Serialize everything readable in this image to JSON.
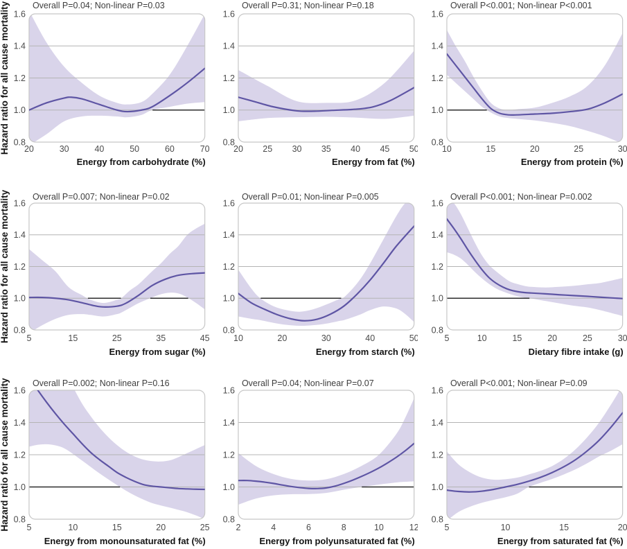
{
  "figure": {
    "ylabel": "Hazard ratio for all cause mortality",
    "style": {
      "line_color": "#5e55a4",
      "band_color": "#d9d4ea",
      "grid_color": "#b4b4b4",
      "ref_line_color": "#2b2b2b",
      "frame_color": "#c6c6c6",
      "title_color": "#3d3d3d",
      "tick_color": "#4b4b4b",
      "label_color": "#141414"
    }
  },
  "chart_data": [
    {
      "type": "line",
      "key": "carbohydrate",
      "title": "Overall P=0.04; Non-linear P=0.03",
      "xlabel": "Energy from carbohydrate (%)",
      "ylabel": "Hazard ratio for all cause mortality",
      "xlim": [
        20,
        70
      ],
      "ylim": [
        0.8,
        1.6
      ],
      "x_ticks": [
        20,
        30,
        40,
        50,
        60,
        70
      ],
      "y_ticks": [
        0.8,
        1.0,
        1.2,
        1.4,
        1.6
      ],
      "gridlines": [
        1.0,
        1.2,
        1.4
      ],
      "reference_y": 1.0,
      "curve": {
        "x": [
          20,
          25,
          30,
          32,
          35,
          40,
          45,
          48,
          52,
          55,
          60,
          65,
          70
        ],
        "hr": [
          1.0,
          1.045,
          1.075,
          1.08,
          1.07,
          1.035,
          1.0,
          0.99,
          1.0,
          1.02,
          1.09,
          1.17,
          1.26
        ]
      },
      "ci_band": {
        "x": [
          20,
          25,
          30,
          35,
          40,
          45,
          48,
          52,
          55,
          60,
          65,
          70
        ],
        "lower": [
          0.78,
          0.85,
          0.93,
          0.96,
          0.965,
          0.96,
          0.955,
          0.97,
          1.0,
          1.02,
          1.04,
          1.05
        ],
        "upper": [
          1.62,
          1.42,
          1.27,
          1.17,
          1.09,
          1.045,
          1.035,
          1.05,
          1.1,
          1.22,
          1.4,
          1.6
        ]
      }
    },
    {
      "type": "line",
      "key": "fat",
      "title": "Overall P=0.31; Non-linear P=0.18",
      "xlabel": "Energy from fat (%)",
      "ylabel": "",
      "xlim": [
        20,
        50
      ],
      "ylim": [
        0.8,
        1.6
      ],
      "x_ticks": [
        20,
        25,
        30,
        35,
        40,
        45,
        50
      ],
      "y_ticks": [
        0.8,
        1.0,
        1.2,
        1.4,
        1.6
      ],
      "gridlines": [
        1.0,
        1.2,
        1.4
      ],
      "reference_y": 1.0,
      "curve": {
        "x": [
          20,
          23,
          26,
          30,
          33,
          36,
          40,
          43,
          46,
          50
        ],
        "hr": [
          1.08,
          1.05,
          1.02,
          0.995,
          0.993,
          0.998,
          1.005,
          1.02,
          1.06,
          1.14
        ]
      },
      "ci_band": {
        "x": [
          20,
          25,
          30,
          35,
          40,
          45,
          50
        ],
        "lower": [
          0.93,
          0.95,
          0.955,
          0.958,
          0.953,
          0.945,
          0.965
        ],
        "upper": [
          1.25,
          1.15,
          1.055,
          1.045,
          1.06,
          1.17,
          1.37
        ]
      }
    },
    {
      "type": "line",
      "key": "protein",
      "title": "Overall P<0.001; Non-linear P<0.001",
      "xlabel": "Energy from protein (%)",
      "ylabel": "",
      "xlim": [
        10,
        30
      ],
      "ylim": [
        0.8,
        1.6
      ],
      "x_ticks": [
        10,
        15,
        20,
        25,
        30
      ],
      "y_ticks": [
        0.8,
        1.0,
        1.2,
        1.4,
        1.6
      ],
      "gridlines": [
        1.0,
        1.2,
        1.4
      ],
      "reference_y": 1.0,
      "curve": {
        "x": [
          10,
          11,
          12,
          13,
          14,
          15,
          16,
          17,
          18,
          20,
          22,
          24,
          26,
          28,
          30
        ],
        "hr": [
          1.35,
          1.28,
          1.21,
          1.14,
          1.07,
          1.01,
          0.98,
          0.97,
          0.97,
          0.975,
          0.98,
          0.99,
          1.005,
          1.045,
          1.1
        ]
      },
      "ci_band": {
        "x": [
          10,
          11,
          12,
          13,
          14,
          15,
          16,
          17,
          18,
          20,
          22,
          24,
          26,
          28,
          30
        ],
        "lower": [
          1.22,
          1.17,
          1.12,
          1.07,
          1.02,
          0.985,
          0.96,
          0.95,
          0.945,
          0.935,
          0.92,
          0.9,
          0.87,
          0.835,
          0.79
        ],
        "upper": [
          1.5,
          1.4,
          1.31,
          1.21,
          1.12,
          1.045,
          1.01,
          1.0,
          1.005,
          1.015,
          1.045,
          1.085,
          1.15,
          1.28,
          1.48
        ]
      }
    },
    {
      "type": "line",
      "key": "sugar",
      "title": "Overall P=0.007; Non-linear P=0.02",
      "xlabel": "Energy from sugar (%)",
      "ylabel": "Hazard ratio for all cause mortality",
      "xlim": [
        5,
        45
      ],
      "ylim": [
        0.8,
        1.6
      ],
      "x_ticks": [
        5,
        15,
        25,
        35,
        45
      ],
      "y_ticks": [
        0.8,
        1.0,
        1.2,
        1.4,
        1.6
      ],
      "gridlines": [
        1.0,
        1.2,
        1.4
      ],
      "reference_y": 1.0,
      "curve": {
        "x": [
          5,
          8,
          11,
          14,
          17,
          20,
          22,
          25,
          27,
          30,
          33,
          36,
          39,
          42,
          45
        ],
        "hr": [
          1.005,
          1.005,
          1.0,
          0.99,
          0.972,
          0.952,
          0.945,
          0.95,
          0.968,
          1.02,
          1.08,
          1.12,
          1.145,
          1.155,
          1.16
        ]
      },
      "ci_band": {
        "x": [
          5,
          8,
          11,
          14,
          17,
          19,
          22,
          25,
          26,
          28,
          30,
          33,
          35,
          37,
          39,
          41,
          43,
          45
        ],
        "lower": [
          0.78,
          0.83,
          0.87,
          0.895,
          0.9,
          0.895,
          0.885,
          0.9,
          0.91,
          0.94,
          0.97,
          1.005,
          1.025,
          1.035,
          1.03,
          1.005,
          0.97,
          0.93
        ],
        "upper": [
          1.31,
          1.24,
          1.17,
          1.07,
          1.02,
          0.99,
          0.97,
          0.99,
          1.0,
          1.05,
          1.09,
          1.17,
          1.22,
          1.28,
          1.33,
          1.4,
          1.44,
          1.47
        ]
      }
    },
    {
      "type": "line",
      "key": "starch",
      "title": "Overall P=0.01; Non-linear P=0.005",
      "xlabel": "Energy from starch (%)",
      "ylabel": "",
      "xlim": [
        10,
        50
      ],
      "ylim": [
        0.8,
        1.6
      ],
      "x_ticks": [
        10,
        20,
        30,
        40,
        50
      ],
      "y_ticks": [
        0.8,
        1.0,
        1.2,
        1.4,
        1.6
      ],
      "gridlines": [
        1.0,
        1.2,
        1.4
      ],
      "reference_y": 1.0,
      "curve": {
        "x": [
          10,
          13,
          16,
          19,
          22,
          25,
          28,
          31,
          34,
          37,
          40,
          43,
          46,
          50
        ],
        "hr": [
          1.03,
          0.97,
          0.93,
          0.895,
          0.87,
          0.858,
          0.868,
          0.9,
          0.95,
          1.025,
          1.115,
          1.22,
          1.33,
          1.455
        ]
      },
      "ci_band": {
        "x": [
          10,
          13,
          15,
          18,
          21,
          24,
          27,
          30,
          33,
          34,
          36,
          38,
          40,
          43,
          46,
          48,
          50
        ],
        "lower": [
          0.885,
          0.87,
          0.862,
          0.845,
          0.832,
          0.826,
          0.83,
          0.84,
          0.857,
          0.862,
          0.88,
          0.9,
          0.925,
          0.948,
          0.935,
          0.9,
          0.85
        ],
        "upper": [
          1.18,
          1.06,
          1.0,
          0.95,
          0.925,
          0.915,
          0.93,
          0.96,
          0.995,
          1.005,
          1.06,
          1.13,
          1.22,
          1.37,
          1.52,
          1.6,
          1.63
        ]
      }
    },
    {
      "type": "line",
      "key": "fibre",
      "title": "Overall P<0.001; Non-linear P=0.002",
      "xlabel": "Dietary fibre intake (g)",
      "ylabel": "",
      "xlim": [
        5,
        30
      ],
      "ylim": [
        0.8,
        1.6
      ],
      "x_ticks": [
        5,
        10,
        15,
        20,
        25,
        30
      ],
      "y_ticks": [
        0.8,
        1.0,
        1.2,
        1.4,
        1.6
      ],
      "gridlines": [
        1.0,
        1.2,
        1.4
      ],
      "reference_y": 1.0,
      "curve": {
        "x": [
          5,
          6,
          7,
          8,
          9,
          10,
          11,
          12,
          13,
          14,
          15,
          16,
          17,
          19,
          21,
          23,
          25,
          27,
          30
        ],
        "hr": [
          1.5,
          1.44,
          1.375,
          1.305,
          1.24,
          1.18,
          1.13,
          1.095,
          1.07,
          1.052,
          1.042,
          1.036,
          1.033,
          1.028,
          1.022,
          1.017,
          1.012,
          1.006,
          0.998
        ]
      },
      "ci_band": {
        "x": [
          5,
          6,
          7,
          8,
          9,
          10,
          11,
          12,
          13,
          14,
          15,
          16,
          17,
          19,
          21,
          23,
          25,
          27,
          30
        ],
        "lower": [
          1.29,
          1.275,
          1.25,
          1.21,
          1.165,
          1.125,
          1.09,
          1.062,
          1.042,
          1.026,
          1.013,
          1.004,
          0.999,
          0.983,
          0.968,
          0.953,
          0.942,
          0.923,
          0.888
        ],
        "upper": [
          1.64,
          1.6,
          1.53,
          1.44,
          1.35,
          1.27,
          1.21,
          1.17,
          1.135,
          1.105,
          1.09,
          1.078,
          1.072,
          1.068,
          1.072,
          1.078,
          1.088,
          1.098,
          1.128
        ]
      }
    },
    {
      "type": "line",
      "key": "monounsaturated",
      "title": "Overall P=0.002; Non-linear P=0.16",
      "xlabel": "Energy from monounsaturated fat (%)",
      "ylabel": "Hazard ratio for all cause mortality",
      "xlim": [
        5,
        25
      ],
      "ylim": [
        0.8,
        1.6
      ],
      "x_ticks": [
        5,
        10,
        15,
        20,
        25
      ],
      "y_ticks": [
        0.8,
        1.0,
        1.2,
        1.4,
        1.6
      ],
      "gridlines": [
        1.0,
        1.2,
        1.4
      ],
      "reference_y": 1.0,
      "curve": {
        "x": [
          5,
          6,
          7,
          8,
          9,
          10,
          11,
          12,
          13,
          14,
          15,
          16,
          17,
          18,
          19,
          20,
          21,
          22,
          23,
          24,
          25
        ],
        "hr": [
          1.68,
          1.6,
          1.525,
          1.455,
          1.39,
          1.33,
          1.27,
          1.215,
          1.17,
          1.13,
          1.09,
          1.06,
          1.035,
          1.015,
          1.005,
          1.0,
          0.995,
          0.99,
          0.988,
          0.986,
          0.985
        ]
      },
      "ci_band": {
        "x": [
          5,
          6,
          7,
          8,
          9,
          10,
          11,
          12,
          13,
          14,
          15,
          16,
          17,
          18,
          19,
          20,
          21,
          22,
          23,
          24,
          25
        ],
        "lower": [
          1.25,
          1.262,
          1.265,
          1.258,
          1.24,
          1.205,
          1.165,
          1.125,
          1.085,
          1.048,
          1.012,
          0.978,
          0.948,
          0.922,
          0.9,
          0.885,
          0.872,
          0.858,
          0.843,
          0.823,
          0.8
        ],
        "upper": [
          2.1,
          2.0,
          1.92,
          1.82,
          1.72,
          1.62,
          1.52,
          1.44,
          1.37,
          1.31,
          1.26,
          1.22,
          1.19,
          1.17,
          1.16,
          1.158,
          1.165,
          1.185,
          1.21,
          1.235,
          1.26
        ]
      }
    },
    {
      "type": "line",
      "key": "polyunsaturated",
      "title": "Overall P=0.04; Non-linear P=0.07",
      "xlabel": "Energy from polyunsaturated fat (%)",
      "ylabel": "",
      "xlim": [
        2,
        12
      ],
      "ylim": [
        0.8,
        1.6
      ],
      "x_ticks": [
        2,
        4,
        6,
        8,
        10,
        12
      ],
      "y_ticks": [
        0.8,
        1.0,
        1.2,
        1.4,
        1.6
      ],
      "gridlines": [
        1.0,
        1.2,
        1.4
      ],
      "reference_y": 1.0,
      "curve": {
        "x": [
          2,
          2.5,
          3,
          3.5,
          4,
          4.5,
          5,
          5.5,
          6,
          6.5,
          7,
          7.5,
          8,
          8.5,
          9,
          9.5,
          10,
          10.5,
          11,
          11.5,
          12
        ],
        "hr": [
          1.04,
          1.04,
          1.036,
          1.03,
          1.022,
          1.012,
          1.003,
          0.996,
          0.991,
          0.99,
          0.994,
          1.005,
          1.022,
          1.042,
          1.065,
          1.09,
          1.118,
          1.15,
          1.185,
          1.225,
          1.27
        ]
      },
      "ci_band": {
        "x": [
          2,
          3,
          4,
          5,
          6,
          7,
          8,
          9,
          10,
          11,
          11.5,
          12
        ],
        "lower": [
          0.89,
          0.928,
          0.948,
          0.955,
          0.956,
          0.963,
          0.983,
          1.0,
          1.015,
          1.028,
          1.032,
          1.035
        ],
        "upper": [
          1.21,
          1.13,
          1.08,
          1.05,
          1.04,
          1.048,
          1.08,
          1.13,
          1.2,
          1.33,
          1.43,
          1.55
        ]
      }
    },
    {
      "type": "line",
      "key": "saturated",
      "title": "Overall P<0.001; Non-linear P=0.09",
      "xlabel": "Energy from saturated fat (%)",
      "ylabel": "",
      "xlim": [
        5,
        20
      ],
      "ylim": [
        0.8,
        1.6
      ],
      "x_ticks": [
        5,
        10,
        15,
        20
      ],
      "y_ticks": [
        0.8,
        1.0,
        1.2,
        1.4,
        1.6
      ],
      "gridlines": [
        1.0,
        1.2,
        1.4
      ],
      "reference_y": 1.0,
      "curve": {
        "x": [
          5,
          6,
          7,
          8,
          9,
          10,
          11,
          12,
          13,
          14,
          15,
          16,
          17,
          18,
          19,
          20
        ],
        "hr": [
          0.98,
          0.972,
          0.969,
          0.974,
          0.985,
          1.0,
          1.016,
          1.036,
          1.06,
          1.09,
          1.126,
          1.17,
          1.225,
          1.29,
          1.37,
          1.46
        ]
      },
      "ci_band": {
        "x": [
          5,
          6,
          7,
          8,
          9,
          10,
          11,
          12,
          13,
          14,
          15,
          16,
          17,
          18,
          19,
          20
        ],
        "lower": [
          0.79,
          0.845,
          0.878,
          0.902,
          0.92,
          0.936,
          0.958,
          1.0,
          1.026,
          1.05,
          1.078,
          1.11,
          1.148,
          1.19,
          1.225,
          1.265
        ],
        "upper": [
          1.22,
          1.14,
          1.09,
          1.058,
          1.045,
          1.048,
          1.058,
          1.078,
          1.1,
          1.13,
          1.175,
          1.235,
          1.31,
          1.4,
          1.51,
          1.63
        ]
      }
    }
  ]
}
